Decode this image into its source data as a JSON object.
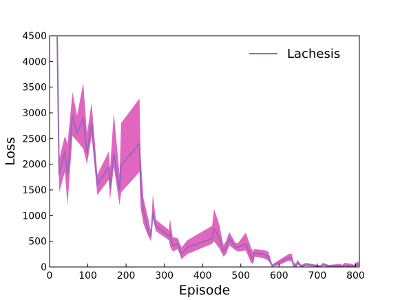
{
  "chart_data": {
    "type": "line",
    "title": "",
    "xlabel": "Episode",
    "ylabel": "Loss",
    "xlim": [
      0,
      810
    ],
    "ylim": [
      0,
      4500
    ],
    "xticks": [
      0,
      100,
      200,
      300,
      400,
      500,
      600,
      700,
      800
    ],
    "yticks": [
      0,
      500,
      1000,
      1500,
      2000,
      2500,
      3000,
      3500,
      4000,
      4500
    ],
    "grid": false,
    "legend_position": "top-right",
    "series": [
      {
        "name": "Lachesis",
        "line_color": "#9966bb",
        "band_color": "#e066c0",
        "x": [
          20,
          25,
          40,
          47,
          60,
          72,
          88,
          98,
          110,
          125,
          155,
          158,
          168,
          183,
          187,
          235,
          238,
          245,
          258,
          265,
          270,
          278,
          312,
          315,
          322,
          335,
          345,
          360,
          425,
          430,
          445,
          448,
          455,
          462,
          470,
          485,
          492,
          513,
          527,
          533,
          535,
          560,
          572,
          582,
          597,
          625,
          633,
          638,
          645,
          648,
          658,
          670,
          708,
          715,
          730,
          760,
          765,
          772,
          790,
          796,
          800,
          808
        ],
        "y": [
          4480,
          1800,
          2250,
          1800,
          2950,
          2600,
          2900,
          2200,
          2800,
          1600,
          1950,
          1550,
          2200,
          1500,
          1980,
          2400,
          1700,
          1100,
          700,
          600,
          1050,
          800,
          600,
          650,
          420,
          450,
          250,
          380,
          550,
          750,
          550,
          450,
          300,
          380,
          550,
          400,
          380,
          450,
          200,
          150,
          270,
          250,
          200,
          20,
          80,
          180,
          170,
          30,
          20,
          100,
          10,
          50,
          10,
          50,
          10,
          20,
          15,
          30,
          10,
          15,
          30,
          40
        ],
        "lower": [
          4480,
          1450,
          1850,
          1200,
          2550,
          2450,
          2300,
          2000,
          2550,
          1400,
          1700,
          1300,
          1950,
          1200,
          1450,
          1850,
          1150,
          850,
          600,
          500,
          950,
          700,
          520,
          400,
          300,
          350,
          150,
          250,
          450,
          500,
          350,
          300,
          200,
          260,
          420,
          330,
          300,
          320,
          80,
          60,
          200,
          170,
          120,
          5,
          30,
          120,
          110,
          5,
          5,
          50,
          0,
          20,
          0,
          20,
          0,
          0,
          0,
          10,
          0,
          0,
          10,
          15
        ],
        "upper": [
          4500,
          2100,
          2550,
          2400,
          3400,
          2950,
          3580,
          2600,
          3200,
          1800,
          2250,
          1900,
          3000,
          1800,
          2800,
          3280,
          2200,
          1350,
          950,
          700,
          1420,
          920,
          720,
          930,
          580,
          560,
          380,
          520,
          800,
          1130,
          800,
          650,
          420,
          520,
          680,
          480,
          460,
          670,
          370,
          300,
          350,
          330,
          300,
          50,
          120,
          250,
          260,
          90,
          60,
          140,
          40,
          80,
          30,
          80,
          40,
          60,
          40,
          80,
          60,
          40,
          80,
          100
        ]
      }
    ]
  }
}
